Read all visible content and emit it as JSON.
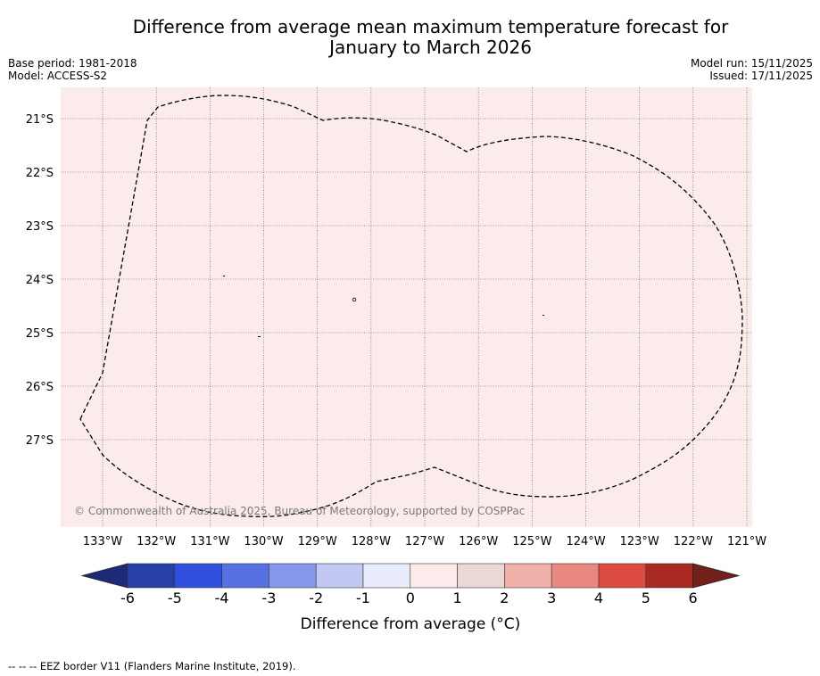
{
  "title_line1": "Difference from average mean maximum temperature forecast for",
  "title_line2": "January to March 2026",
  "base_period": "Base period: 1981-2018",
  "model": "Model: ACCESS-S2",
  "model_run": "Model run: 15/11/2025",
  "issued": "Issued: 17/11/2025",
  "map": {
    "lon_labels": [
      "133°W",
      "132°W",
      "131°W",
      "130°W",
      "129°W",
      "128°W",
      "127°W",
      "126°W",
      "125°W",
      "124°W",
      "123°W",
      "122°W",
      "121°W"
    ],
    "lat_labels": [
      "21°S",
      "22°S",
      "23°S",
      "24°S",
      "25°S",
      "26°S",
      "27°S"
    ],
    "fill_color": "#fbebea",
    "copyright": "© Commonwealth of Australia 2025, Bureau of Meteorology, supported by COSPPac"
  },
  "colorbar": {
    "ticks": [
      "-6",
      "-5",
      "-4",
      "-3",
      "-2",
      "-1",
      "0",
      "1",
      "2",
      "3",
      "4",
      "5",
      "6"
    ],
    "colors": [
      "#2640a8",
      "#2f50dd",
      "#5672e2",
      "#8497ea",
      "#c1c9f2",
      "#e8ebfa",
      "#fbebea",
      "#ead8d7",
      "#efb0aa",
      "#e8887e",
      "#db4b3f",
      "#a82a22"
    ],
    "under_color": "#1c2a78",
    "over_color": "#72201a",
    "label": "Difference from average (°C)"
  },
  "footer": "--  --  -- EEZ border V11 (Flanders Marine Institute, 2019)."
}
